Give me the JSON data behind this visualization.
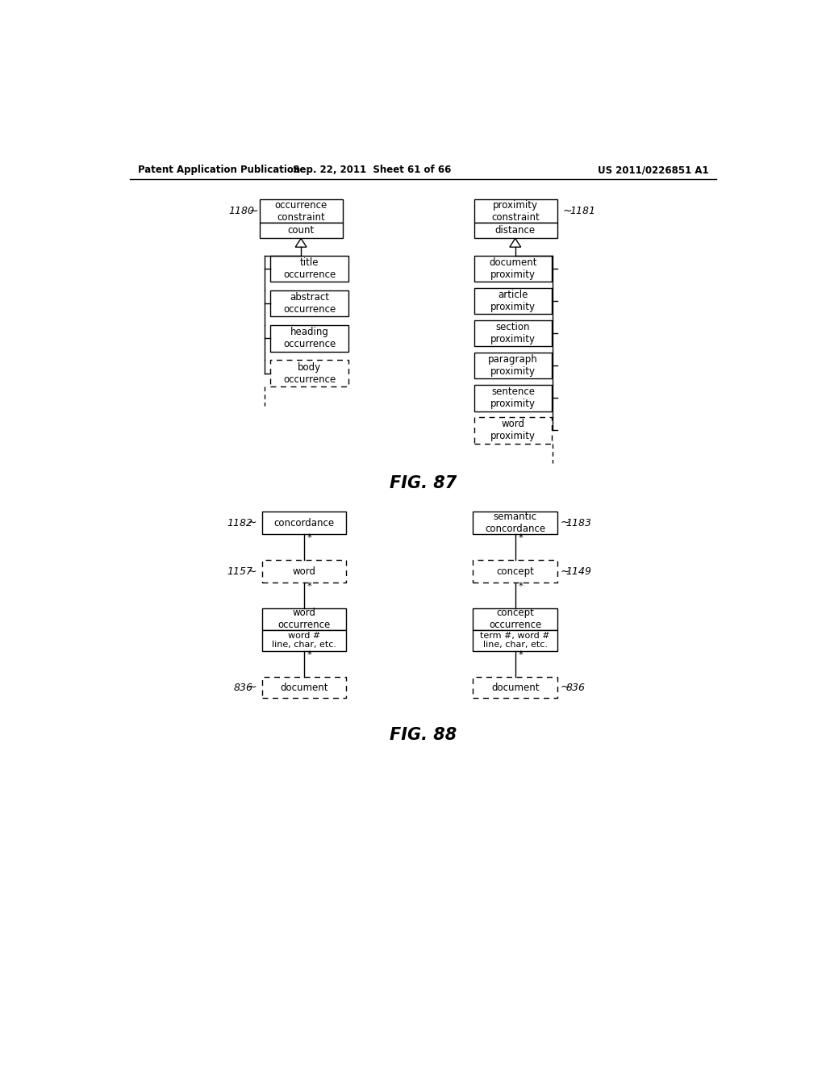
{
  "header_left": "Patent Application Publication",
  "header_mid": "Sep. 22, 2011  Sheet 61 of 66",
  "header_right": "US 2011/0226851 A1",
  "fig87_caption": "FIG. 87",
  "fig88_caption": "FIG. 88",
  "bg_color": "#ffffff",
  "text_color": "#000000"
}
